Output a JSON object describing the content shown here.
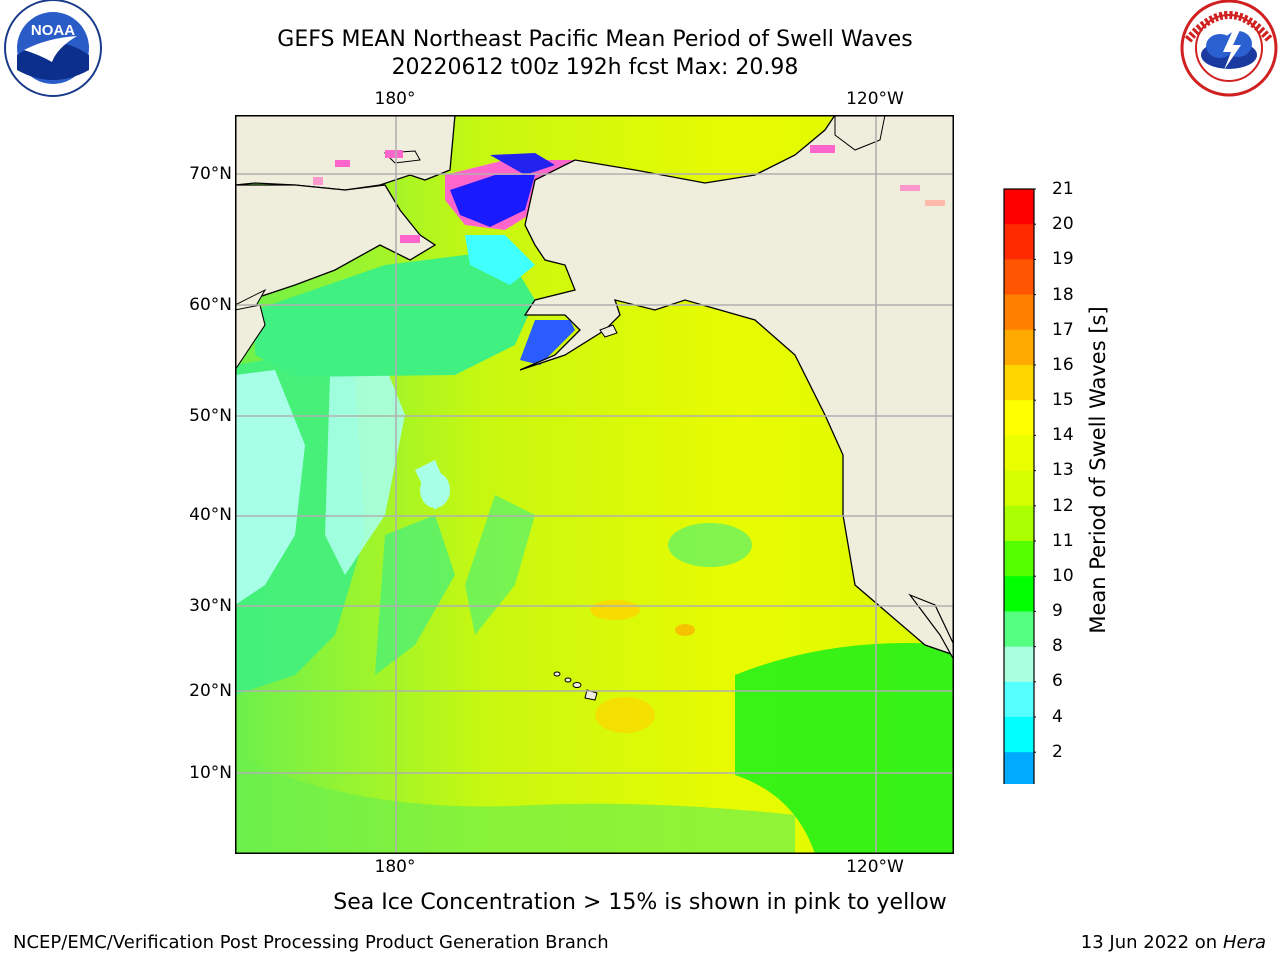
{
  "title": {
    "line1": "GEFS MEAN Northeast Pacific Mean Period of Swell Waves",
    "line2": "20220612 t00z 192h fcst   Max: 20.98"
  },
  "logos": {
    "left": "noaa-logo",
    "right": "nws-logo"
  },
  "map": {
    "lat_labels": [
      "70°N",
      "60°N",
      "50°N",
      "40°N",
      "30°N",
      "20°N",
      "10°N"
    ],
    "lon_labels_top": [
      "180°",
      "120°W"
    ],
    "lon_labels_bottom": [
      "180°",
      "120°W"
    ],
    "colors": {
      "land": "#efeddc",
      "grid": "#b0b0b0",
      "coast": "#000000"
    }
  },
  "colorbar": {
    "label": "Mean Period of Swell Waves [s]",
    "ticks": [
      "21",
      "20",
      "19",
      "18",
      "17",
      "16",
      "15",
      "14",
      "13",
      "12",
      "11",
      "10",
      "9",
      "8",
      "6",
      "4",
      "2"
    ],
    "bins": [
      "#ff0000",
      "#ff2a00",
      "#ff5500",
      "#ff8000",
      "#ffaa00",
      "#ffd500",
      "#ffff00",
      "#eaff00",
      "#d5ff00",
      "#aaff00",
      "#55ff00",
      "#00ff00",
      "#55ff80",
      "#aaffdf",
      "#55ffff",
      "#00ffff",
      "#00aaff",
      "#0055ff"
    ],
    "extend_color": "#0000ff"
  },
  "footnote": "Sea Ice Concentration > 15% is shown in pink to yellow",
  "footer": {
    "credit": "NCEP/EMC/Verification Post Processing Product Generation Branch",
    "date": "13 Jun 2022 on",
    "system": "Hera"
  }
}
